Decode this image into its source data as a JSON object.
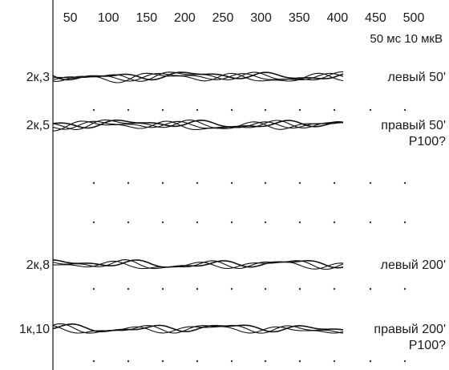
{
  "chart_data": {
    "type": "line",
    "x_ticks": [
      50,
      100,
      150,
      200,
      250,
      300,
      350,
      400,
      450,
      500
    ],
    "xlim": [
      0,
      520
    ],
    "scale_note": "50 мс 10 мкВ",
    "rows": [
      {
        "label": "2к,3",
        "condition": [
          "левый 50'"
        ],
        "trace_count": 4
      },
      {
        "label": "2к,5",
        "condition": [
          "правый 50'",
          "P100?"
        ],
        "trace_count": 4
      },
      {
        "label": "2к,8",
        "condition": [
          "левый 200'"
        ],
        "trace_count": 3
      },
      {
        "label": "1к,10",
        "condition": [
          "правый 200'",
          "P100?"
        ],
        "trace_count": 3
      }
    ],
    "grid": "dotted",
    "colors": {
      "trace": "#111111",
      "axis": "#222222"
    }
  }
}
